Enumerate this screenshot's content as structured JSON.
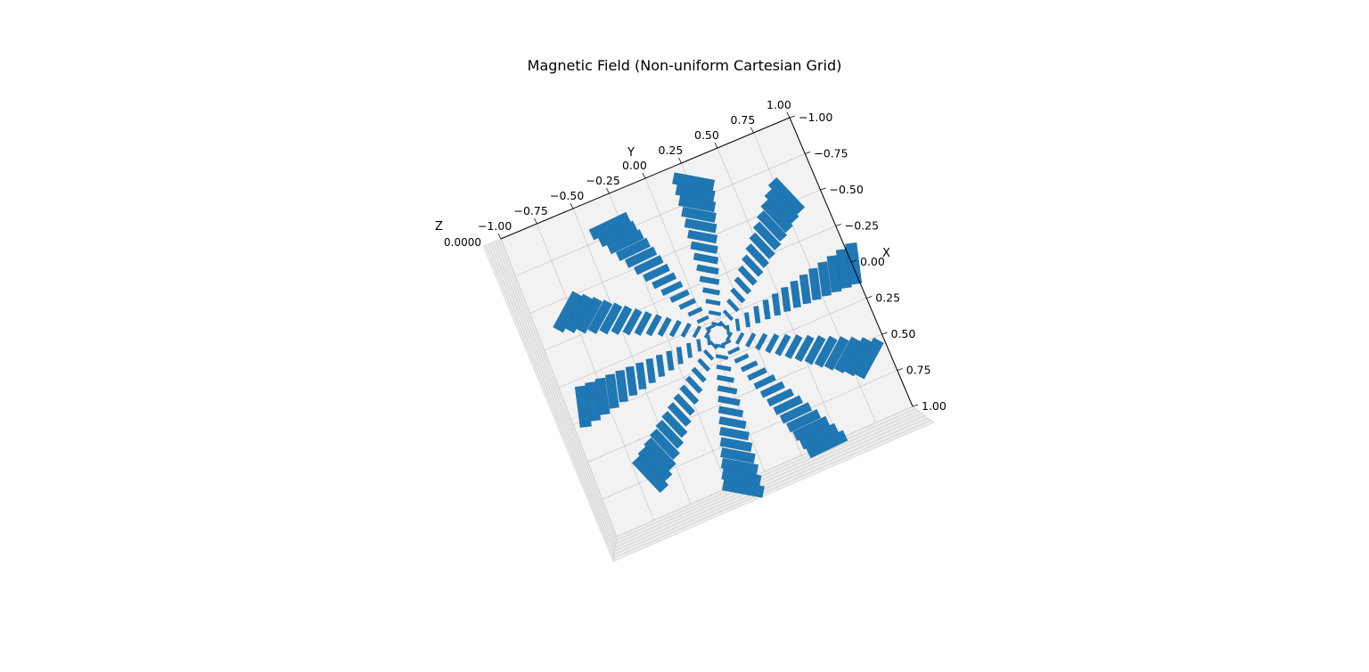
{
  "chart_data": {
    "type": "quiver3d",
    "title": "Magnetic Field (Non-uniform Cartesian Grid)",
    "xlabel": "X",
    "ylabel": "Y",
    "zlabel": "Z",
    "xlim": [
      -1.0,
      1.0
    ],
    "ylim": [
      -1.0,
      1.0
    ],
    "x_ticks": [
      "−1.00",
      "−0.75",
      "−0.50",
      "−0.25",
      "0.00",
      "0.25",
      "0.50",
      "0.75",
      "1.00"
    ],
    "y_ticks": [
      "−1.00",
      "−0.75",
      "−0.50",
      "−0.25",
      "0.00",
      "0.25",
      "0.50",
      "0.75",
      "1.00"
    ],
    "z_ticks_overlapping_text": "0.\u00000.\u00000.\u00000.0",
    "arrow_color": "#1f77b4",
    "pane_color": "#f2f2f2",
    "grid": true,
    "rays": 10,
    "points_per_ray": 14,
    "field": "azimuthal (B ∝ φ̂ / r)"
  }
}
